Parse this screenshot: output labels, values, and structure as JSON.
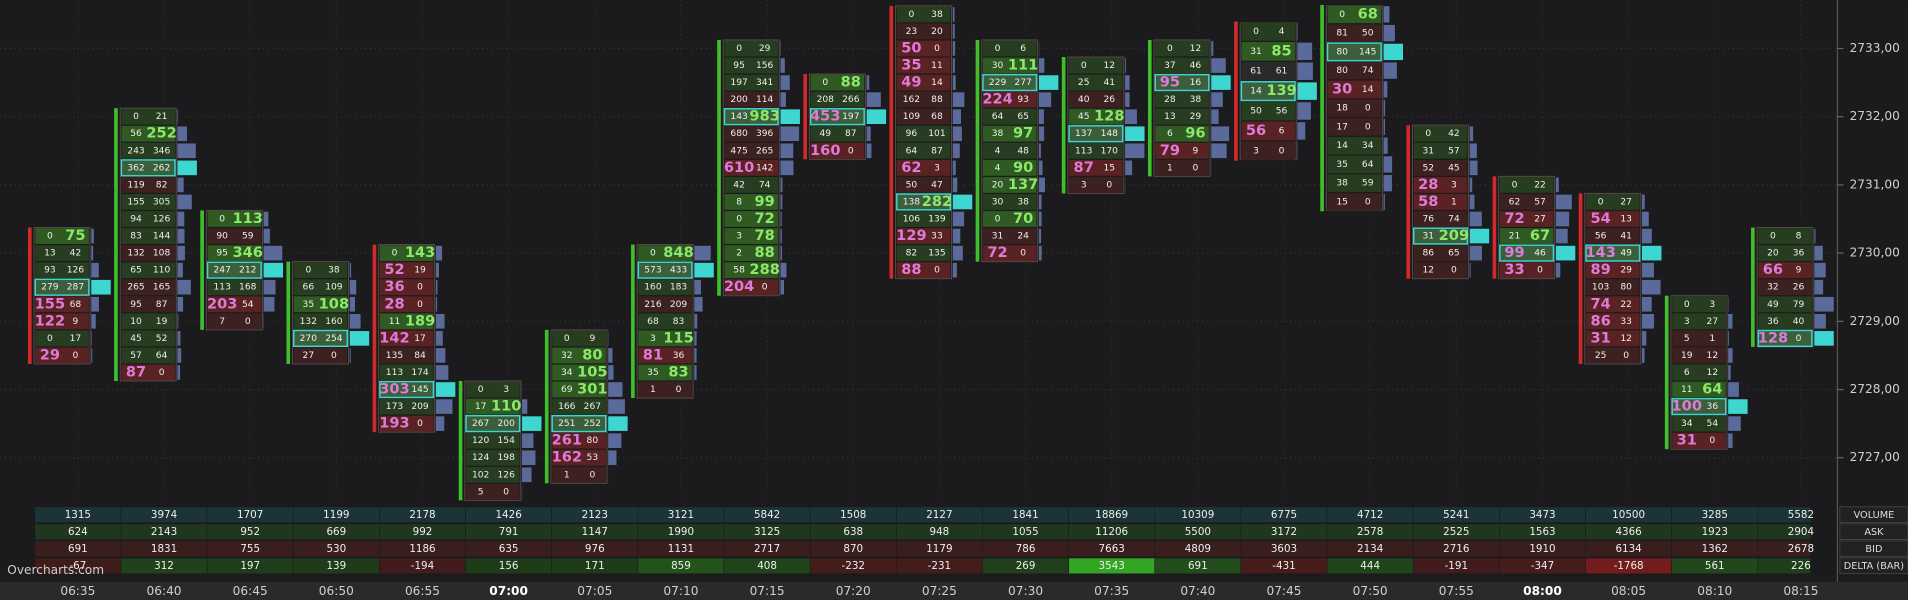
{
  "chart_data": {
    "type": "footprint",
    "watermark": "Overcharts.com",
    "ylim": [
      2726.36,
      2733.71
    ],
    "yticks": [
      {
        "value": 2733,
        "label": "2733,00"
      },
      {
        "value": 2732,
        "label": "2732,00"
      },
      {
        "value": 2731,
        "label": "2731,00"
      },
      {
        "value": 2730,
        "label": "2730,00"
      },
      {
        "value": 2729,
        "label": "2729,00"
      },
      {
        "value": 2728,
        "label": "2728,00"
      },
      {
        "value": 2727,
        "label": "2727,00"
      }
    ],
    "x": [
      "06:35",
      "06:40",
      "06:45",
      "06:50",
      "06:55",
      "07:00",
      "07:05",
      "07:10",
      "07:15",
      "07:20",
      "07:25",
      "07:30",
      "07:35",
      "07:40",
      "07:45",
      "07:50",
      "07:55",
      "08:00",
      "08:05",
      "08:10",
      "08:15"
    ],
    "candles": [
      {
        "high": 2730.25,
        "low": 2728.5,
        "rows": [
          [
            0,
            75
          ],
          [
            13,
            42
          ],
          [
            93,
            126
          ],
          [
            279,
            287
          ],
          [
            155,
            68
          ],
          [
            122,
            9
          ],
          [
            0,
            17
          ],
          [
            29,
            0
          ]
        ]
      },
      {
        "high": 2732.0,
        "low": 2728.25,
        "rows": [
          [
            0,
            21
          ],
          [
            56,
            252
          ],
          [
            243,
            346
          ],
          [
            362,
            262
          ],
          [
            119,
            82
          ],
          [
            155,
            305
          ],
          [
            94,
            126
          ],
          [
            83,
            144
          ],
          [
            132,
            108
          ],
          [
            65,
            110
          ],
          [
            265,
            165
          ],
          [
            95,
            87
          ],
          [
            10,
            19
          ],
          [
            45,
            52
          ],
          [
            57,
            64
          ],
          [
            87,
            0
          ]
        ]
      },
      {
        "high": 2730.5,
        "low": 2729.0,
        "rows": [
          [
            0,
            113
          ],
          [
            90,
            59
          ],
          [
            95,
            346
          ],
          [
            247,
            212
          ],
          [
            113,
            168
          ],
          [
            203,
            54
          ],
          [
            7,
            0
          ]
        ]
      },
      {
        "high": 2729.75,
        "low": 2728.5,
        "rows": [
          [
            0,
            38
          ],
          [
            66,
            109
          ],
          [
            35,
            108
          ],
          [
            132,
            160
          ],
          [
            270,
            254
          ],
          [
            27,
            0
          ]
        ]
      },
      {
        "high": 2730.0,
        "low": 2727.5,
        "rows": [
          [
            0,
            143
          ],
          [
            52,
            19
          ],
          [
            36,
            0
          ],
          [
            28,
            0
          ],
          [
            11,
            189
          ],
          [
            142,
            17
          ],
          [
            135,
            84
          ],
          [
            113,
            174
          ],
          [
            303,
            145
          ],
          [
            173,
            209
          ],
          [
            193,
            0
          ]
        ]
      },
      {
        "high": 2728.0,
        "low": 2726.5,
        "rows": [
          [
            0,
            3
          ],
          [
            17,
            110
          ],
          [
            267,
            200
          ],
          [
            120,
            154
          ],
          [
            124,
            198
          ],
          [
            102,
            126
          ],
          [
            5,
            0
          ]
        ]
      },
      {
        "high": 2728.75,
        "low": 2726.75,
        "rows": [
          [
            0,
            9
          ],
          [
            32,
            80
          ],
          [
            34,
            105
          ],
          [
            69,
            301
          ],
          [
            166,
            267
          ],
          [
            251,
            252
          ],
          [
            261,
            80
          ],
          [
            162,
            53
          ],
          [
            1,
            0
          ]
        ]
      },
      {
        "high": 2730.0,
        "low": 2728.0,
        "rows": [
          [
            0,
            848
          ],
          [
            573,
            433
          ],
          [
            160,
            183
          ],
          [
            216,
            209
          ],
          [
            68,
            83
          ],
          [
            3,
            115
          ],
          [
            81,
            36
          ],
          [
            35,
            83
          ],
          [
            1,
            0
          ]
        ]
      },
      {
        "high": 2733.0,
        "low": 2729.5,
        "rows": [
          [
            0,
            29
          ],
          [
            95,
            156
          ],
          [
            197,
            341
          ],
          [
            200,
            114
          ],
          [
            143,
            983
          ],
          [
            680,
            396
          ],
          [
            475,
            265
          ],
          [
            610,
            142
          ],
          [
            42,
            74
          ],
          [
            8,
            99
          ],
          [
            0,
            72
          ],
          [
            3,
            78
          ],
          [
            2,
            88
          ],
          [
            58,
            288
          ],
          [
            204,
            0
          ]
        ]
      },
      {
        "high": 2732.5,
        "low": 2731.5,
        "rows": [
          [
            0,
            88
          ],
          [
            208,
            266
          ],
          [
            453,
            197
          ],
          [
            49,
            87
          ],
          [
            160,
            0
          ]
        ]
      },
      {
        "high": 2733.5,
        "low": 2729.75,
        "rows": [
          [
            0,
            38
          ],
          [
            23,
            20
          ],
          [
            50,
            0
          ],
          [
            35,
            11
          ],
          [
            49,
            14
          ],
          [
            162,
            88
          ],
          [
            109,
            68
          ],
          [
            96,
            101
          ],
          [
            64,
            87
          ],
          [
            62,
            3
          ],
          [
            50,
            47
          ],
          [
            138,
            282
          ],
          [
            106,
            139
          ],
          [
            129,
            33
          ],
          [
            82,
            135
          ],
          [
            88,
            0
          ]
        ]
      },
      {
        "high": 2733.0,
        "low": 2730.0,
        "rows": [
          [
            0,
            6
          ],
          [
            30,
            111
          ],
          [
            229,
            277
          ],
          [
            224,
            93
          ],
          [
            64,
            65
          ],
          [
            38,
            97
          ],
          [
            4,
            48
          ],
          [
            4,
            90
          ],
          [
            20,
            137
          ],
          [
            30,
            38
          ],
          [
            0,
            70
          ],
          [
            31,
            24
          ],
          [
            72,
            0
          ]
        ]
      },
      {
        "high": 2732.75,
        "low": 2731.0,
        "rows": [
          [
            0,
            12
          ],
          [
            25,
            41
          ],
          [
            40,
            26
          ],
          [
            45,
            128
          ],
          [
            137,
            148
          ],
          [
            113,
            170
          ],
          [
            87,
            15
          ],
          [
            3,
            0
          ]
        ]
      },
      {
        "high": 2733.0,
        "low": 2731.25,
        "rows": [
          [
            0,
            12
          ],
          [
            37,
            46
          ],
          [
            95,
            16
          ],
          [
            28,
            38
          ],
          [
            13,
            29
          ],
          [
            6,
            96
          ],
          [
            79,
            9
          ],
          [
            1,
            0
          ]
        ]
      },
      {
        "high": 2733.25,
        "low": 2731.5,
        "rows": [
          [
            0,
            4
          ],
          [
            31,
            85
          ],
          [
            61,
            61
          ],
          [
            14,
            139
          ],
          [
            50,
            56
          ],
          [
            56,
            6
          ],
          [
            3,
            0
          ]
        ]
      },
      {
        "high": 2733.5,
        "low": 2730.75,
        "rows": [
          [
            0,
            68
          ],
          [
            81,
            50
          ],
          [
            80,
            145
          ],
          [
            80,
            74
          ],
          [
            30,
            14
          ],
          [
            18,
            0
          ],
          [
            17,
            0
          ],
          [
            14,
            34
          ],
          [
            35,
            64
          ],
          [
            38,
            59
          ],
          [
            15,
            0
          ]
        ]
      },
      {
        "high": 2731.75,
        "low": 2729.75,
        "rows": [
          [
            0,
            42
          ],
          [
            31,
            57
          ],
          [
            52,
            45
          ],
          [
            28,
            3
          ],
          [
            58,
            1
          ],
          [
            76,
            74
          ],
          [
            31,
            209
          ],
          [
            86,
            65
          ],
          [
            12,
            0
          ]
        ]
      },
      {
        "high": 2731.0,
        "low": 2729.75,
        "rows": [
          [
            0,
            22
          ],
          [
            62,
            57
          ],
          [
            72,
            27
          ],
          [
            21,
            67
          ],
          [
            99,
            46
          ],
          [
            33,
            0
          ]
        ]
      },
      {
        "high": 2730.75,
        "low": 2728.5,
        "rows": [
          [
            0,
            27
          ],
          [
            54,
            13
          ],
          [
            56,
            41
          ],
          [
            143,
            49
          ],
          [
            89,
            29
          ],
          [
            103,
            80
          ],
          [
            74,
            22
          ],
          [
            86,
            33
          ],
          [
            31,
            12
          ],
          [
            25,
            0
          ]
        ]
      },
      {
        "high": 2729.25,
        "low": 2727.25,
        "rows": [
          [
            0,
            3
          ],
          [
            3,
            27
          ],
          [
            5,
            1
          ],
          [
            19,
            12
          ],
          [
            6,
            12
          ],
          [
            11,
            64
          ],
          [
            100,
            36
          ],
          [
            34,
            54
          ],
          [
            31,
            0
          ]
        ]
      },
      {
        "high": 2730.25,
        "low": 2728.75,
        "rows": [
          [
            0,
            8
          ],
          [
            20,
            36
          ],
          [
            66,
            9
          ],
          [
            32,
            26
          ],
          [
            49,
            79
          ],
          [
            36,
            40
          ],
          [
            128,
            0
          ]
        ]
      }
    ],
    "stats": [
      {
        "name": "VOLUME",
        "values": [
          1315,
          3974,
          1707,
          1199,
          2178,
          1426,
          2123,
          3121,
          5842,
          1508,
          2127,
          1841,
          18869,
          10309,
          6775,
          4712,
          5241,
          3473,
          10500,
          3285,
          5582
        ]
      },
      {
        "name": "ASK",
        "values": [
          624,
          2143,
          952,
          669,
          992,
          791,
          1147,
          1990,
          3125,
          638,
          948,
          1055,
          11206,
          5500,
          3172,
          2578,
          2525,
          1563,
          4366,
          1923,
          2904
        ]
      },
      {
        "name": "BID",
        "values": [
          691,
          1831,
          755,
          530,
          1186,
          635,
          976,
          1131,
          2717,
          870,
          1179,
          786,
          7663,
          4809,
          3603,
          2134,
          2716,
          1910,
          6134,
          1362,
          2678
        ]
      },
      {
        "name": "DELTA (BAR)",
        "values": [
          -67,
          312,
          197,
          139,
          -194,
          156,
          171,
          859,
          408,
          -232,
          -231,
          269,
          3543,
          691,
          -431,
          444,
          -191,
          -347,
          -1768,
          561,
          226
        ]
      }
    ]
  }
}
